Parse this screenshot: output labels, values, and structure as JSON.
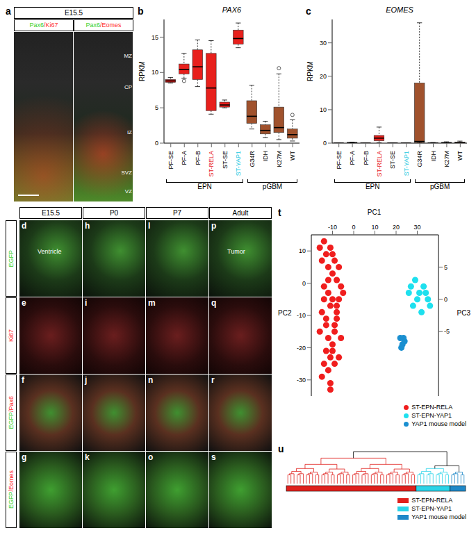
{
  "chart_data": [
    {
      "label": "b",
      "type": "boxplot",
      "title": "PAX6",
      "y_label": "RPKM",
      "categories": [
        "PF-SE",
        "PF-A",
        "PF-B",
        "ST-RELA",
        "ST-SE",
        "ST-YAP1",
        "G34R",
        "IDH",
        "K27M",
        "WT"
      ],
      "colors": [
        "#e8201c",
        "#e8201c",
        "#e8201c",
        "#e8201c",
        "#e8201c",
        "#e8201c",
        "#a0522d",
        "#a0522d",
        "#a0522d",
        "#a0522d"
      ],
      "stats": [
        {
          "min": 8.5,
          "q1": 8.6,
          "median": 8.8,
          "q3": 9.0,
          "max": 9.3,
          "outliers": []
        },
        {
          "min": 9.2,
          "q1": 9.8,
          "median": 10.4,
          "q3": 11.2,
          "max": 12.7,
          "outliers": [
            8.8
          ]
        },
        {
          "min": 8.0,
          "q1": 9.0,
          "median": 10.8,
          "q3": 13.2,
          "max": 14.6,
          "outliers": []
        },
        {
          "min": 4.1,
          "q1": 4.6,
          "median": 7.8,
          "q3": 12.7,
          "max": 14.5,
          "outliers": []
        },
        {
          "min": 5.0,
          "q1": 5.1,
          "median": 5.4,
          "q3": 5.8,
          "max": 6.1,
          "outliers": []
        },
        {
          "min": 13.5,
          "q1": 14.0,
          "median": 14.8,
          "q3": 16.0,
          "max": 17.0,
          "outliers": []
        },
        {
          "min": 2.0,
          "q1": 2.8,
          "median": 3.8,
          "q3": 6.0,
          "max": 8.2,
          "outliers": []
        },
        {
          "min": 0.8,
          "q1": 1.3,
          "median": 1.8,
          "q3": 2.6,
          "max": 3.1,
          "outliers": []
        },
        {
          "min": 0.5,
          "q1": 1.5,
          "median": 2.2,
          "q3": 5.1,
          "max": 9.8,
          "outliers": [
            10.6
          ]
        },
        {
          "min": 0.3,
          "q1": 0.7,
          "median": 1.2,
          "q3": 2.0,
          "max": 3.3,
          "outliers": [
            4.0
          ]
        }
      ],
      "groups": [
        {
          "name": "EPN",
          "count": 6
        },
        {
          "name": "pGBM",
          "count": 4
        }
      ],
      "ylim": [
        0,
        17.5
      ],
      "yticks": [
        0,
        5,
        10,
        15
      ]
    },
    {
      "label": "c",
      "type": "boxplot",
      "title": "EOMES",
      "y_label": "RPKM",
      "categories": [
        "PF-SE",
        "PF-A",
        "PF-B",
        "ST-RELA",
        "ST-SE",
        "ST-YAP1",
        "G34R",
        "IDH",
        "K27M",
        "WT"
      ],
      "colors": [
        "#e8201c",
        "#e8201c",
        "#e8201c",
        "#e8201c",
        "#e8201c",
        "#e8201c",
        "#a0522d",
        "#a0522d",
        "#a0522d",
        "#a0522d"
      ],
      "stats": [
        {
          "min": 0,
          "q1": 0,
          "median": 0,
          "q3": 0.05,
          "max": 0.1,
          "outliers": []
        },
        {
          "min": 0,
          "q1": 0,
          "median": 0.1,
          "q3": 0.2,
          "max": 0.3,
          "outliers": []
        },
        {
          "min": 0,
          "q1": 0,
          "median": 0,
          "q3": 0.05,
          "max": 0.1,
          "outliers": []
        },
        {
          "min": 0.1,
          "q1": 0.7,
          "median": 1.5,
          "q3": 2.3,
          "max": 4.8,
          "outliers": []
        },
        {
          "min": 0,
          "q1": 0,
          "median": 0,
          "q3": 0.05,
          "max": 0.1,
          "outliers": []
        },
        {
          "min": 0,
          "q1": 0,
          "median": 0,
          "q3": 0.05,
          "max": 0.1,
          "outliers": []
        },
        {
          "min": 0,
          "q1": 0.2,
          "median": 0.5,
          "q3": 18.0,
          "max": 36.0,
          "outliers": []
        },
        {
          "min": 0,
          "q1": 0,
          "median": 0,
          "q3": 0.1,
          "max": 0.2,
          "outliers": []
        },
        {
          "min": 0,
          "q1": 0,
          "median": 0.1,
          "q3": 0.2,
          "max": 0.4,
          "outliers": []
        },
        {
          "min": 0,
          "q1": 0,
          "median": 0.1,
          "q3": 0.3,
          "max": 0.6,
          "outliers": []
        }
      ],
      "groups": [
        {
          "name": "EPN",
          "count": 6
        },
        {
          "name": "pGBM",
          "count": 4
        }
      ],
      "ylim": [
        0,
        37
      ],
      "yticks": [
        0,
        10,
        20,
        30
      ]
    },
    {
      "label": "t",
      "type": "scatter",
      "x_label": "PC1",
      "y_label": "PC3",
      "y2_label": "PC2",
      "xlim": [
        -20,
        40
      ],
      "xticks": [
        -10,
        0,
        10,
        20,
        30
      ],
      "ylim": [
        -15,
        10
      ],
      "yticks": [
        -5,
        0,
        5
      ],
      "y2lim": [
        -35,
        15
      ],
      "y2ticks": [
        -30,
        -20,
        -10,
        0,
        10
      ],
      "legend": "bottom right",
      "series": [
        {
          "name": "ST-EPN-RELA",
          "color": "#f01e1e",
          "x": [
            -16,
            -15,
            -14,
            -13,
            -12,
            -11,
            -10,
            -9,
            -8,
            -7,
            -14,
            -12,
            -10,
            -8,
            -6,
            -15,
            -13,
            -11,
            -9,
            -7,
            -5,
            -16,
            -12,
            -8,
            -10,
            -13,
            -11,
            -9,
            -6,
            -14,
            -12,
            -10,
            -7,
            -15,
            -11,
            -9,
            -13,
            -8,
            -12,
            -10,
            -14,
            -11
          ],
          "y": [
            8,
            6,
            9,
            7,
            5,
            8,
            4,
            6,
            3,
            5,
            2,
            1,
            0,
            -1,
            2,
            -2,
            -3,
            -1,
            -4,
            0,
            1,
            -5,
            -6,
            -3,
            -7,
            -8,
            -9,
            -5,
            -6,
            -10,
            -11,
            -8,
            -9,
            -12,
            -13,
            -10,
            -4,
            -2,
            3,
            7,
            0,
            -14
          ]
        },
        {
          "name": "ST-EPN-YAP1",
          "color": "#1ee0ee",
          "x": [
            27,
            29,
            31,
            33,
            35,
            28,
            30,
            32,
            34,
            36,
            26
          ],
          "y": [
            2,
            3,
            1,
            2,
            0,
            -1,
            0,
            -2,
            1,
            -1,
            1
          ]
        },
        {
          "name": "YAP1 mouse model",
          "color": "#1a8fd0",
          "x": [
            22,
            23,
            24,
            22.5,
            23.5
          ],
          "y": [
            -6,
            -7,
            -6.5,
            -7.5,
            -6
          ]
        }
      ]
    },
    {
      "label": "u",
      "type": "dendrogram",
      "legend": "bottom right",
      "series": [
        {
          "name": "ST-EPN-RELA",
          "color": "#e0201c",
          "count": 42
        },
        {
          "name": "ST-EPN-YAP1",
          "color": "#2ad4e8",
          "count": 11
        },
        {
          "name": "YAP1 mouse model",
          "color": "#1e88c8",
          "count": 5
        }
      ]
    }
  ],
  "panel_a": {
    "label": "a",
    "header": "E15.5",
    "columns": [
      "Pax6/Ki67",
      "Pax6/Eomes"
    ],
    "zones": [
      "MZ",
      "CP",
      "IZ",
      "SVZ",
      "VZ"
    ]
  },
  "panels_d_s": {
    "columns": [
      "E15.5",
      "P0",
      "P7",
      "Adult"
    ],
    "rows": [
      {
        "name": "EGFP",
        "labels": [
          "d",
          "h",
          "l",
          "p"
        ]
      },
      {
        "name": "Ki67",
        "labels": [
          "e",
          "i",
          "m",
          "q"
        ]
      },
      {
        "name": "EGFP/Pax6",
        "labels": [
          "f",
          "j",
          "n",
          "r"
        ]
      },
      {
        "name": "EGFP/Eomes",
        "labels": [
          "g",
          "k",
          "o",
          "s"
        ]
      }
    ],
    "annotations": {
      "d": "Ventricle",
      "p": "Tumor"
    }
  }
}
